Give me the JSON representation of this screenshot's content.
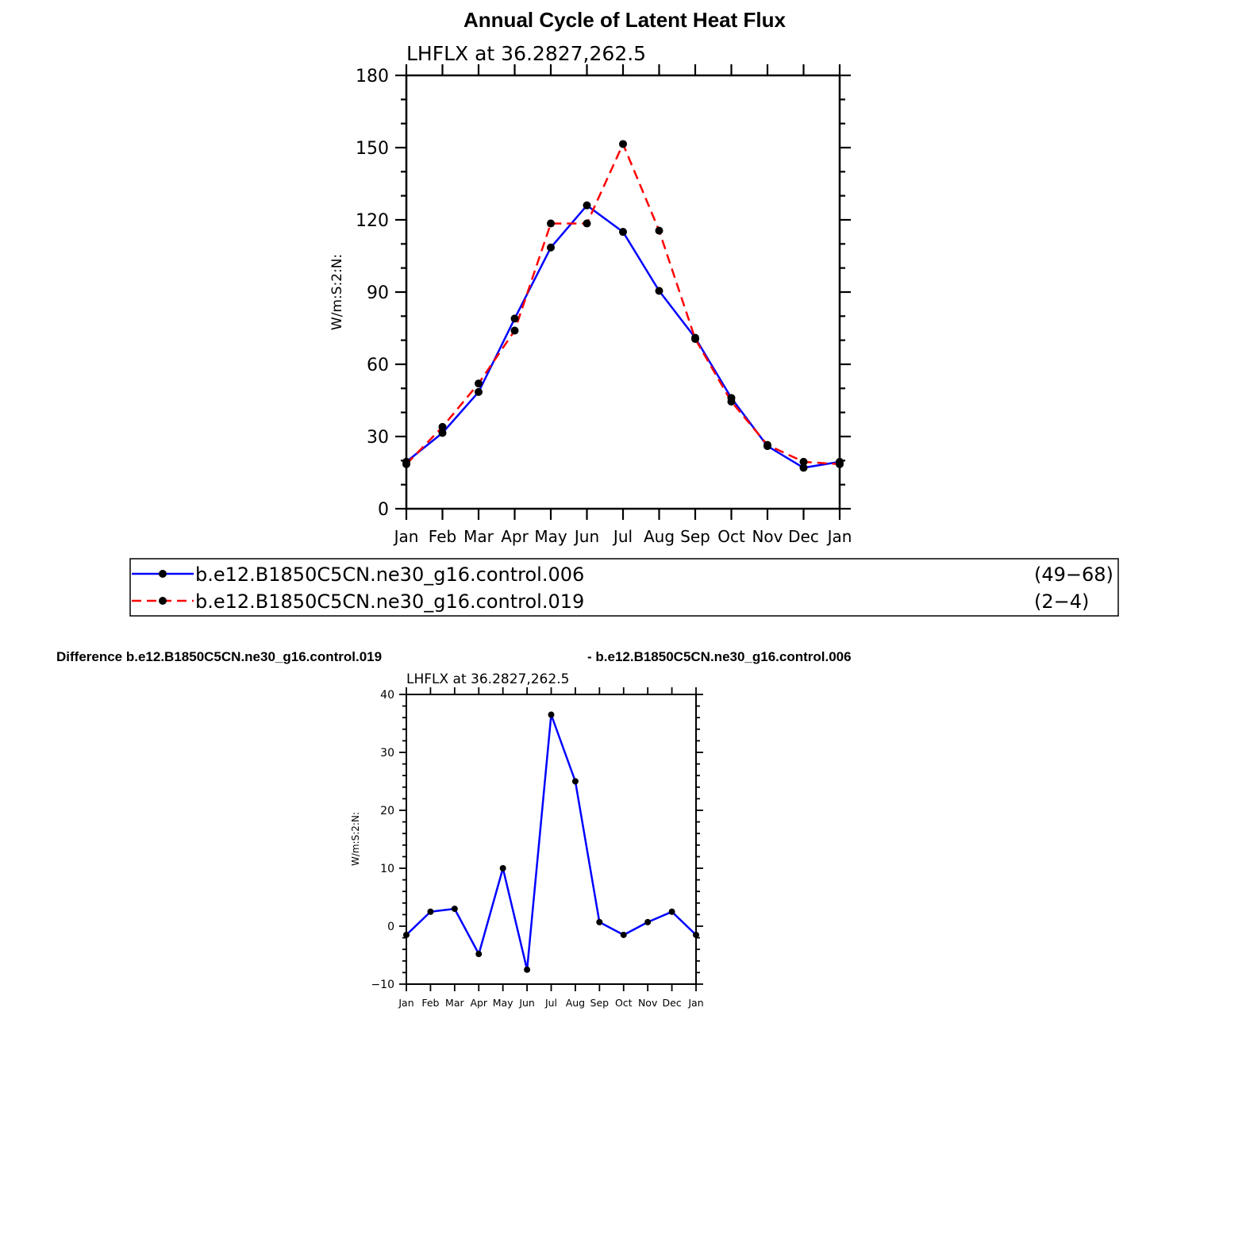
{
  "page": {
    "title": "Annual Cycle of Latent Heat Flux",
    "diff_title_left": "Difference b.e12.B1850C5CN.ne30_g16.control.019",
    "diff_title_right": "- b.e12.B1850C5CN.ne30_g16.control.006"
  },
  "legend": {
    "entries": [
      {
        "label": "b.e12.B1850C5CN.ne30_g16.control.006",
        "years": "(49−68)",
        "color": "#0000ff",
        "dash": false
      },
      {
        "label": "b.e12.B1850C5CN.ne30_g16.control.019",
        "years": "(2−4)",
        "color": "#ff0000",
        "dash": true
      }
    ]
  },
  "chart_data": [
    {
      "type": "line",
      "title": "LHFLX at 36.2827,262.5",
      "ylabel": "W/m:S:2:N:",
      "xlabel": "",
      "categories": [
        "Jan",
        "Feb",
        "Mar",
        "Apr",
        "May",
        "Jun",
        "Jul",
        "Aug",
        "Sep",
        "Oct",
        "Nov",
        "Dec",
        "Jan"
      ],
      "ylim": [
        0,
        180
      ],
      "yticks": [
        0,
        30,
        60,
        90,
        120,
        150,
        180
      ],
      "series": [
        {
          "name": "b.e12.B1850C5CN.ne30_g16.control.006",
          "color": "#0000ff",
          "dash": false,
          "values": [
            19.5,
            31.5,
            48.5,
            79,
            108.5,
            126,
            115,
            90.5,
            71,
            46,
            26,
            17,
            19.5
          ]
        },
        {
          "name": "b.e12.B1850C5CN.ne30_g16.control.019",
          "color": "#ff0000",
          "dash": true,
          "values": [
            18.5,
            34,
            52,
            74,
            118.5,
            118.5,
            151.5,
            115.5,
            70.5,
            44.5,
            26.5,
            19.5,
            18.5
          ]
        }
      ]
    },
    {
      "type": "line",
      "title": "LHFLX at 36.2827,262.5",
      "ylabel": "W/m:S:2:N:",
      "xlabel": "",
      "categories": [
        "Jan",
        "Feb",
        "Mar",
        "Apr",
        "May",
        "Jun",
        "Jul",
        "Aug",
        "Sep",
        "Oct",
        "Nov",
        "Dec",
        "Jan"
      ],
      "ylim": [
        -10,
        40
      ],
      "yticks": [
        -10,
        0,
        10,
        20,
        30,
        40
      ],
      "series": [
        {
          "name": "",
          "color": "#0000ff",
          "dash": false,
          "values": [
            -1.5,
            2.5,
            3.0,
            -4.8,
            10.0,
            -7.5,
            36.5,
            25.0,
            0.7,
            -1.5,
            0.7,
            2.5,
            -1.5
          ]
        }
      ]
    }
  ]
}
